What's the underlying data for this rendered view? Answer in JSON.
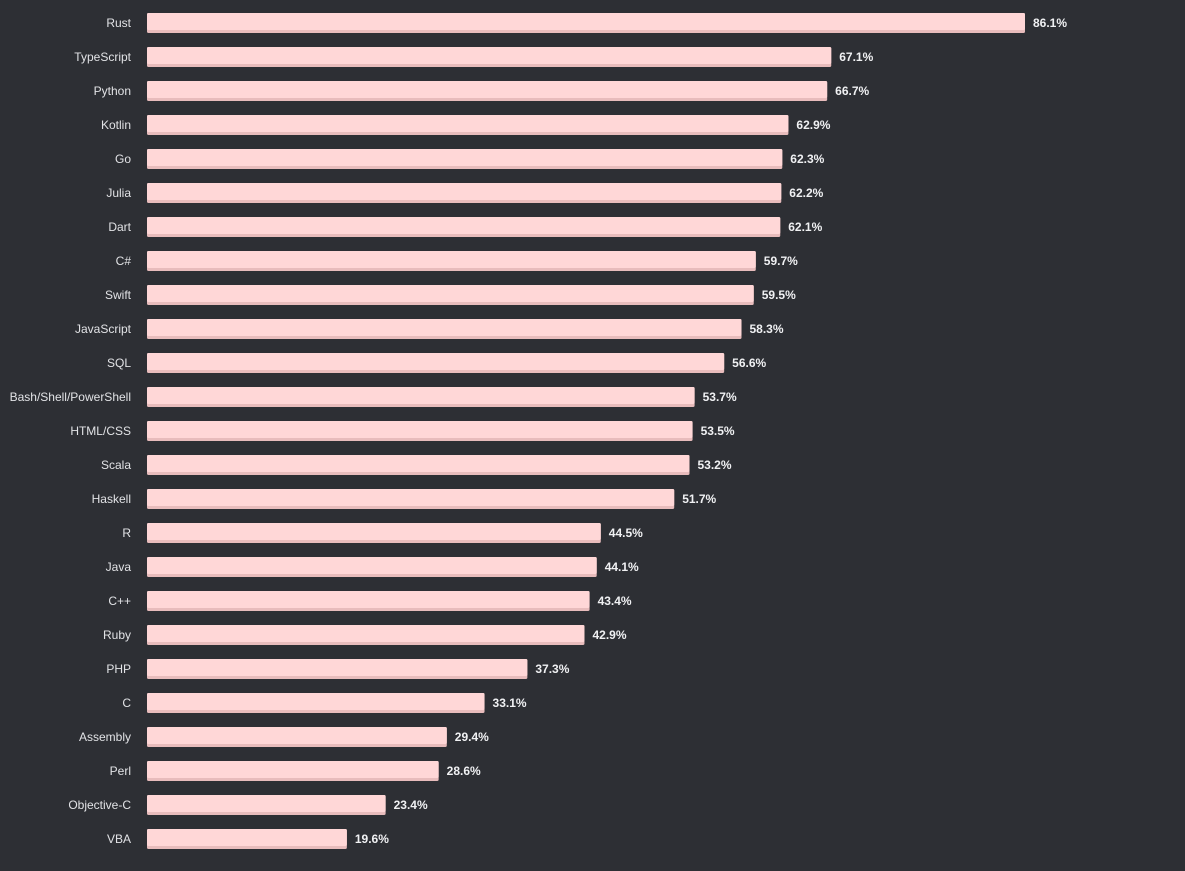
{
  "chart_data": {
    "type": "bar",
    "orientation": "horizontal",
    "categories": [
      "Rust",
      "TypeScript",
      "Python",
      "Kotlin",
      "Go",
      "Julia",
      "Dart",
      "C#",
      "Swift",
      "JavaScript",
      "SQL",
      "Bash/Shell/PowerShell",
      "HTML/CSS",
      "Scala",
      "Haskell",
      "R",
      "Java",
      "C++",
      "Ruby",
      "PHP",
      "C",
      "Assembly",
      "Perl",
      "Objective-C",
      "VBA"
    ],
    "values": [
      86.1,
      67.1,
      66.7,
      62.9,
      62.3,
      62.2,
      62.1,
      59.7,
      59.5,
      58.3,
      56.6,
      53.7,
      53.5,
      53.2,
      51.7,
      44.5,
      44.1,
      43.4,
      42.9,
      37.3,
      33.1,
      29.4,
      28.6,
      23.4,
      19.6
    ],
    "value_labels": [
      "86.1%",
      "67.1%",
      "66.7%",
      "62.9%",
      "62.3%",
      "62.2%",
      "62.1%",
      "59.7%",
      "59.5%",
      "58.3%",
      "56.6%",
      "53.7%",
      "53.5%",
      "53.2%",
      "51.7%",
      "44.5%",
      "44.1%",
      "43.4%",
      "42.9%",
      "37.3%",
      "33.1%",
      "29.4%",
      "28.6%",
      "23.4%",
      "19.6%"
    ],
    "unit": "%",
    "xlim": [
      0,
      100
    ],
    "grid": false,
    "legend": "none",
    "colors": {
      "background": "#2d2f34",
      "bar": "#ffd7d7",
      "bar_shadow": "#e8bcbc",
      "label": "#e2e3e6",
      "value_label": "#f0f1f3"
    }
  }
}
